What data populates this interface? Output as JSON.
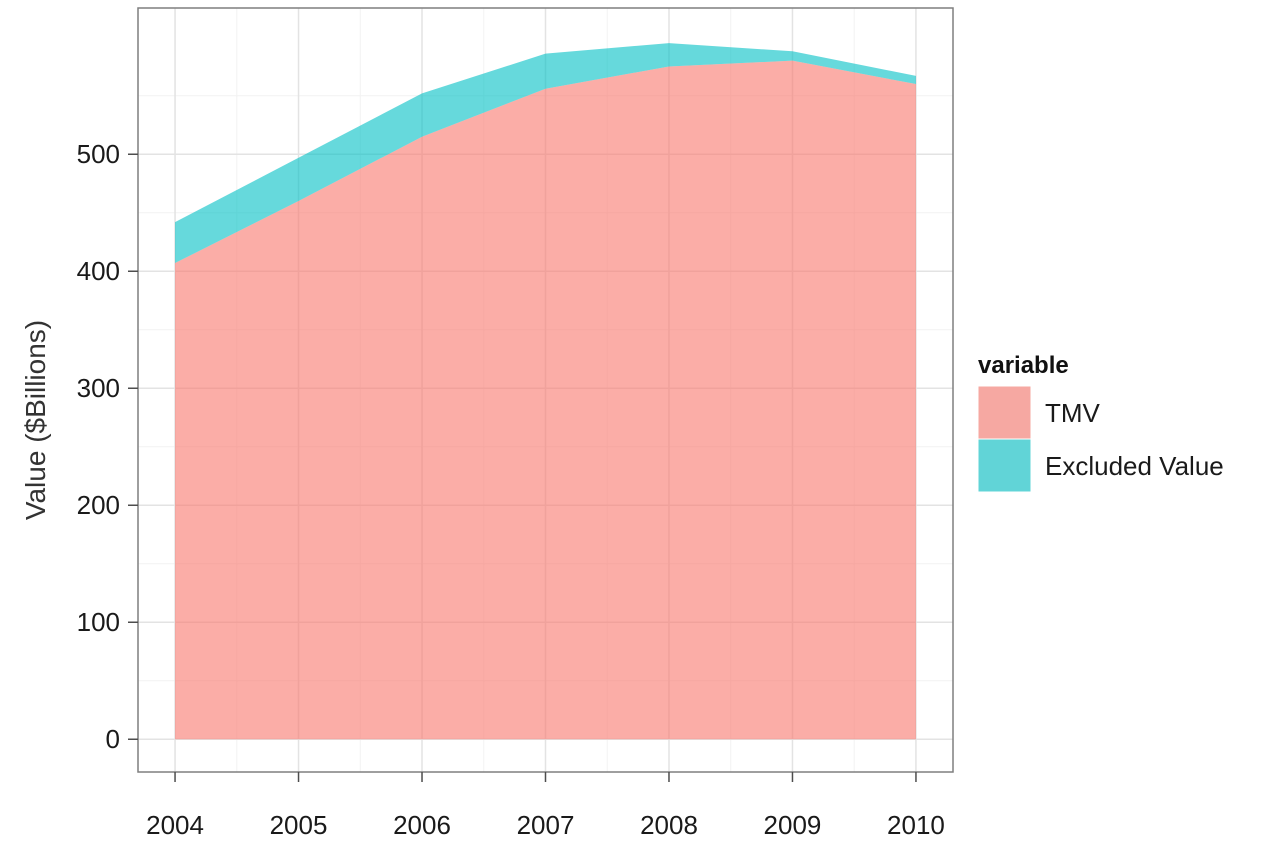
{
  "chart_data": {
    "type": "area",
    "stacked": true,
    "x": [
      2004,
      2005,
      2006,
      2007,
      2008,
      2009,
      2010
    ],
    "series": [
      {
        "name": "TMV",
        "values": [
          407,
          460,
          515,
          556,
          575,
          580,
          560
        ],
        "color": "#F8766D"
      },
      {
        "name": "Excluded Value",
        "values": [
          35,
          37,
          37,
          30,
          20,
          8,
          7
        ],
        "color": "#00BFC4"
      }
    ],
    "ylabel": "Value ($Billions)",
    "xlabel": "",
    "xlim": [
      2003.7,
      2010.3
    ],
    "ylim": [
      -28,
      625
    ],
    "xticks": [
      "2004",
      "2005",
      "2006",
      "2007",
      "2008",
      "2009",
      "2010"
    ],
    "yticks": [
      "0",
      "100",
      "200",
      "300",
      "400",
      "500"
    ],
    "legend": {
      "title": "variable",
      "position": "right",
      "entries": [
        "TMV",
        "Excluded Value"
      ]
    },
    "grid": true,
    "theme": "bw",
    "fill_opacity": 0.6
  }
}
